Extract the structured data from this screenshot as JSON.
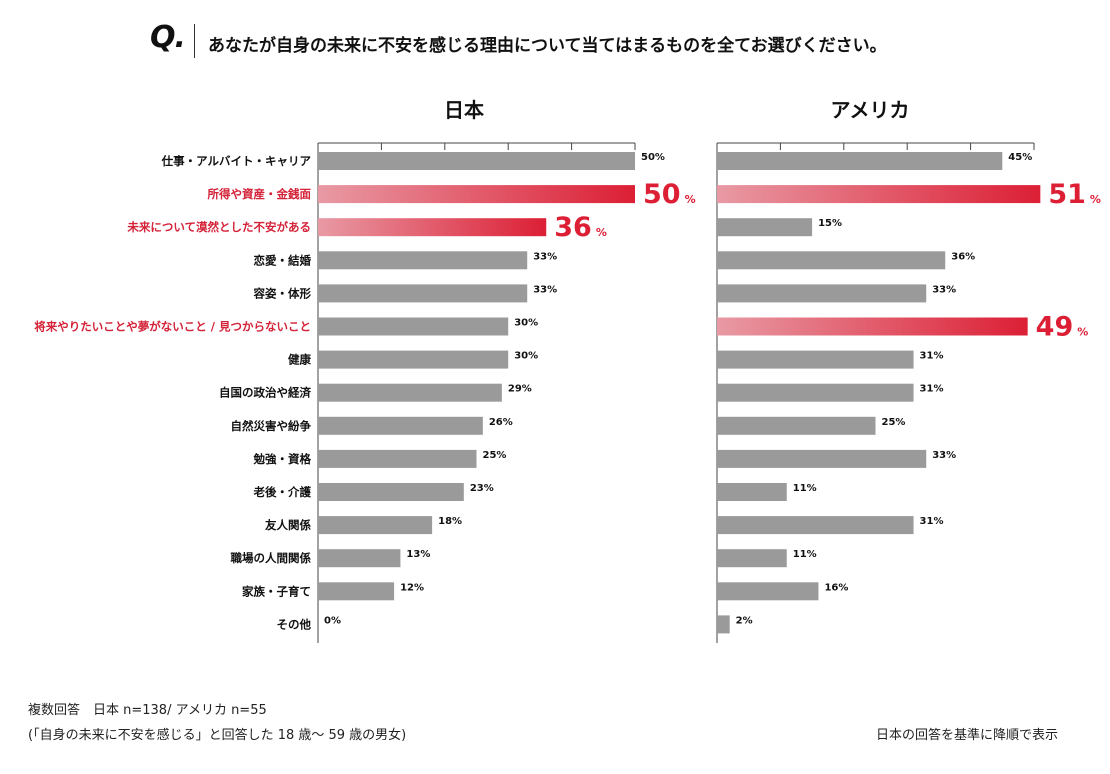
{
  "header": {
    "q_mark": "Q.",
    "question": "あなたが自身の未来に不安を感じる理由について当てはまるものを全てお選びください。"
  },
  "colors": {
    "bar_gray": "#9a9a9a",
    "highlight_red": "#dc1f35",
    "highlight_light": "#e89aa4",
    "label_red": "#d42238",
    "text": "#111111",
    "grid": "#444444"
  },
  "chart_data": {
    "type": "bar",
    "orientation": "horizontal",
    "unit": "%",
    "categories": [
      "仕事・アルバイト・キャリア",
      "所得や資産・金銭面",
      "未来について漠然とした不安がある",
      "恋愛・結婚",
      "容姿・体形",
      "将来やりたいことや夢がないこと / 見つからないこと",
      "健康",
      "自国の政治や経済",
      "自然災害や紛争",
      "勉強・資格",
      "老後・介護",
      "友人関係",
      "職場の人間関係",
      "家族・子育て",
      "その他"
    ],
    "series": [
      {
        "name": "日本",
        "values": [
          50,
          50,
          36,
          33,
          33,
          30,
          30,
          29,
          26,
          25,
          23,
          18,
          13,
          12,
          0
        ],
        "highlight": [
          1,
          2
        ]
      },
      {
        "name": "アメリカ",
        "values": [
          45,
          51,
          15,
          36,
          33,
          49,
          31,
          31,
          25,
          33,
          11,
          31,
          11,
          16,
          2
        ],
        "highlight": [
          1,
          5
        ]
      }
    ],
    "highlight_categories": [
      1,
      2,
      5
    ],
    "xlim": [
      0,
      50
    ]
  },
  "footer": {
    "note_line1": "複数回答　日本 n=138/ アメリカ n=55",
    "note_line2": "(「自身の未来に不安を感じる」と回答した 18 歳〜 59 歳の男女)",
    "sort_note": "日本の回答を基準に降順で表示"
  }
}
